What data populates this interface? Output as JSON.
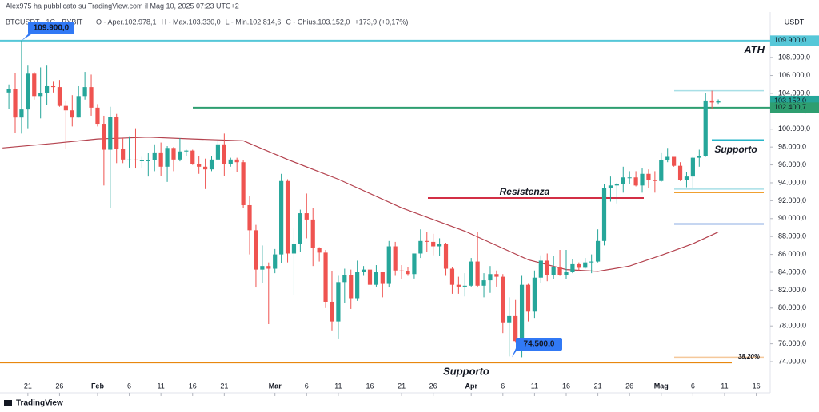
{
  "chart_data": {
    "type": "candlestick",
    "publisher": "Alex975 ha pubblicato su TradingView.com il Mag 10, 2025 07:23 UTC+2",
    "symbol": "BTCUSDT · 1G · BYBIT",
    "ohlc_legend": [
      "O - Aper.102.978,1",
      "H - Max.103.330,0",
      "L - Min.102.814,6",
      "C - Chius.103.152,0",
      "+173,9 (+0,17%)"
    ],
    "currency": "USDT",
    "logo": "TradingView",
    "up_color": "#26a69a",
    "down_color": "#ef5350",
    "x": [
      18,
      19,
      20,
      21,
      22,
      23,
      24,
      25,
      26,
      27,
      28,
      29,
      30,
      31,
      32,
      33,
      34,
      35,
      36,
      37,
      38,
      39,
      40,
      41,
      42,
      43,
      44,
      45,
      46,
      47,
      48,
      49,
      50,
      51,
      52,
      53,
      54,
      55,
      56,
      57,
      58,
      59,
      60,
      61,
      62,
      63,
      64,
      65,
      66,
      67,
      68,
      69,
      70,
      71,
      72,
      73,
      74,
      75,
      76,
      77,
      78,
      79,
      80,
      81,
      82,
      83,
      84,
      85,
      86,
      87,
      88,
      89,
      90,
      91,
      92,
      93,
      94,
      95,
      96,
      97,
      98,
      99,
      100,
      101,
      102,
      103,
      104,
      105,
      106,
      107,
      108,
      109,
      110,
      111,
      112,
      113,
      114,
      115,
      116,
      117,
      118,
      119,
      120,
      121,
      122,
      123,
      124,
      125,
      126,
      127,
      128,
      129,
      130
    ],
    "open": [
      104100,
      104500,
      101300,
      102200,
      106200,
      103700,
      104000,
      104800,
      104700,
      102600,
      102100,
      101300,
      103700,
      104700,
      102400,
      100600,
      97700,
      101400,
      97800,
      96600,
      96600,
      96500,
      96500,
      96500,
      97400,
      95800,
      97900,
      96600,
      97500,
      97600,
      96100,
      95800,
      95500,
      96600,
      98300,
      96100,
      96600,
      96300,
      91500,
      88700,
      84300,
      84700,
      84400,
      86000,
      94200,
      86100,
      87200,
      90600,
      89900,
      86700,
      86200,
      80700,
      78500,
      82900,
      83700,
      81100,
      84000,
      84300,
      82600,
      84000,
      82700,
      86900,
      84200,
      84100,
      83800,
      86100,
      87500,
      87400,
      86900,
      87200,
      84400,
      82600,
      82400,
      82500,
      85200,
      82500,
      83100,
      83800,
      83500,
      78400,
      79100,
      76300,
      82600,
      79600,
      83400,
      85300,
      83700,
      84600,
      83700,
      84000,
      84900,
      84500,
      85100,
      85200,
      87500,
      93400,
      93700,
      93900,
      94600,
      94600,
      93700,
      95000,
      94300,
      94200,
      96500,
      96900,
      95900,
      94300,
      94700,
      96800,
      97000,
      103200,
      102978.1
    ],
    "high": [
      105000,
      106300,
      109900,
      107100,
      106400,
      106900,
      107100,
      105300,
      105500,
      103200,
      103800,
      104800,
      106400,
      106100,
      102800,
      101500,
      102500,
      101700,
      99000,
      99200,
      100100,
      96900,
      97300,
      98300,
      98500,
      98100,
      98000,
      99000,
      97700,
      97700,
      97000,
      96700,
      97000,
      98800,
      99500,
      96800,
      96800,
      96500,
      92500,
      89300,
      87000,
      85100,
      86600,
      95000,
      94400,
      88900,
      91000,
      92800,
      91200,
      86800,
      86500,
      84100,
      83600,
      84400,
      84300,
      85300,
      84700,
      85100,
      84800,
      84000,
      87500,
      87400,
      84800,
      84600,
      86100,
      88800,
      88500,
      88300,
      87800,
      87300,
      84600,
      83500,
      83900,
      85600,
      88500,
      83900,
      84700,
      84200,
      83800,
      81200,
      80900,
      83600,
      82700,
      84200,
      85900,
      86100,
      85800,
      86500,
      86500,
      85500,
      85100,
      85600,
      86000,
      88800,
      93900,
      94700,
      94000,
      95800,
      95300,
      95300,
      95600,
      95500,
      95300,
      97400,
      97900,
      96900,
      96300,
      95200,
      96900,
      97700,
      104000,
      104300,
      103330
    ],
    "low": [
      102300,
      99600,
      99500,
      100100,
      103300,
      101200,
      102700,
      104100,
      102500,
      97800,
      100300,
      101300,
      103300,
      101500,
      100300,
      93700,
      91200,
      96200,
      96200,
      95700,
      95600,
      95700,
      94700,
      95300,
      94800,
      94100,
      95300,
      96400,
      97000,
      96000,
      95000,
      93300,
      95300,
      96500,
      94800,
      95800,
      95200,
      91200,
      86000,
      82300,
      82800,
      78200,
      83900,
      85000,
      85100,
      81400,
      86300,
      87800,
      84700,
      85200,
      80000,
      77500,
      76600,
      80600,
      79900,
      80800,
      83600,
      82000,
      82400,
      81200,
      82300,
      83600,
      83200,
      83600,
      83300,
      85600,
      86300,
      85900,
      85800,
      83600,
      81600,
      81600,
      81300,
      82400,
      82300,
      81200,
      81700,
      82400,
      77200,
      74600,
      76200,
      74500,
      78500,
      78900,
      82800,
      83000,
      83200,
      83600,
      83200,
      83900,
      84200,
      84400,
      83900,
      85100,
      87000,
      91900,
      91700,
      92900,
      93900,
      93600,
      92900,
      93400,
      92900,
      94100,
      96300,
      95800,
      94200,
      93500,
      93400,
      95800,
      96900,
      102300,
      102814.6
    ],
    "close": [
      104500,
      101300,
      102200,
      106200,
      103700,
      104000,
      104800,
      104700,
      102600,
      102100,
      101300,
      103700,
      104700,
      102400,
      100600,
      97700,
      101400,
      97800,
      96600,
      96600,
      96500,
      96500,
      96500,
      97400,
      95800,
      97900,
      96600,
      97500,
      97600,
      96100,
      95800,
      95500,
      96600,
      98300,
      96100,
      96600,
      96300,
      91500,
      88700,
      84300,
      84700,
      84400,
      86000,
      94200,
      86100,
      87200,
      90600,
      89900,
      86700,
      86200,
      80700,
      78500,
      82900,
      83700,
      81100,
      84000,
      84300,
      82600,
      84000,
      82700,
      86900,
      84200,
      84100,
      83800,
      86100,
      87500,
      87400,
      86900,
      87200,
      84400,
      82600,
      82400,
      82500,
      85200,
      82500,
      83100,
      83800,
      83500,
      78400,
      79100,
      76300,
      82600,
      79600,
      83400,
      85300,
      83700,
      84600,
      83700,
      84000,
      84900,
      84500,
      85100,
      85200,
      87500,
      93400,
      93700,
      93900,
      94600,
      94600,
      93700,
      95000,
      94300,
      94200,
      96500,
      96900,
      95900,
      94300,
      94700,
      96800,
      97000,
      103200,
      102978.1,
      103152
    ],
    "moving_average": {
      "color": "#b4424e",
      "x": [
        17,
        25,
        32,
        40,
        47,
        55,
        62,
        70,
        80,
        90,
        100,
        106,
        111,
        116,
        121,
        126,
        130
      ],
      "values": [
        97900,
        98400,
        98900,
        99100,
        98900,
        98700,
        96600,
        94400,
        91200,
        88600,
        85400,
        84300,
        84100,
        84700,
        85900,
        87200,
        88500
      ]
    },
    "xlim": [
      16.6,
      138.2
    ],
    "xticks": [
      {
        "value": 21,
        "label": "21"
      },
      {
        "value": 26,
        "label": "26"
      },
      {
        "value": 32,
        "label": "Feb"
      },
      {
        "value": 37,
        "label": "6"
      },
      {
        "value": 42,
        "label": "11"
      },
      {
        "value": 47,
        "label": "16"
      },
      {
        "value": 52,
        "label": "21"
      },
      {
        "value": 60,
        "label": "Mar"
      },
      {
        "value": 65,
        "label": "6"
      },
      {
        "value": 70,
        "label": "11"
      },
      {
        "value": 75,
        "label": "16"
      },
      {
        "value": 80,
        "label": "21"
      },
      {
        "value": 85,
        "label": "26"
      },
      {
        "value": 91,
        "label": "Apr"
      },
      {
        "value": 96,
        "label": "6"
      },
      {
        "value": 101,
        "label": "11"
      },
      {
        "value": 106,
        "label": "16"
      },
      {
        "value": 111,
        "label": "21"
      },
      {
        "value": 116,
        "label": "26"
      },
      {
        "value": 121,
        "label": "Mag"
      },
      {
        "value": 126,
        "label": "6"
      },
      {
        "value": 131,
        "label": "11"
      },
      {
        "value": 136,
        "label": "16"
      }
    ],
    "ylim": [
      70700,
      113100
    ],
    "yticks": [
      {
        "value": 74000,
        "label": "74.000,0"
      },
      {
        "value": 76000,
        "label": "76.000,0"
      },
      {
        "value": 78000,
        "label": "78.000,0"
      },
      {
        "value": 80000,
        "label": "80.000,0"
      },
      {
        "value": 82000,
        "label": "82.000,0"
      },
      {
        "value": 84000,
        "label": "84.000,0"
      },
      {
        "value": 86000,
        "label": "86.000,0"
      },
      {
        "value": 88000,
        "label": "88.000,0"
      },
      {
        "value": 90000,
        "label": "90.000,0"
      },
      {
        "value": 92000,
        "label": "92.000,0"
      },
      {
        "value": 94000,
        "label": "94.000,0"
      },
      {
        "value": 96000,
        "label": "96.000,0"
      },
      {
        "value": 98000,
        "label": "98.000,0"
      },
      {
        "value": 100000,
        "label": "100.000,0"
      },
      {
        "value": 102000,
        "label": "102.000,0"
      },
      {
        "value": 104000,
        "label": "104.000,0"
      },
      {
        "value": 106000,
        "label": "106.000,0"
      },
      {
        "value": 108000,
        "label": "108.000,0"
      }
    ],
    "levels": [
      {
        "value": 109900,
        "color": "#56c7d8"
      },
      {
        "value": 102400.7,
        "color": "#2e9e70"
      },
      {
        "value": 92300,
        "color": "#d32f45"
      },
      {
        "value": 73900,
        "color": "#e8870e"
      },
      {
        "value": 98800,
        "color": "#26b5c8"
      },
      {
        "value": 92900,
        "color": "#f0a030"
      },
      {
        "value": 93300,
        "color": "#a8dfe6"
      },
      {
        "value": 89400,
        "color": "#1e5cc8"
      },
      {
        "value": 104300,
        "color": "#a8dfe6"
      },
      {
        "value": 74500,
        "color": "#f5c89a"
      }
    ],
    "annotations": [
      {
        "text": "ATH",
        "color": "#56c7d8"
      },
      {
        "text": "Resistenza",
        "color": "#d32f45"
      },
      {
        "text": "Supporto",
        "color": "#26b5c8"
      },
      {
        "text": "Supporto",
        "color": "#2a6fd6"
      },
      {
        "text": "38,20%",
        "color": "#f0a060"
      }
    ],
    "price_labels": [
      {
        "value": 109900,
        "label": "109.900,0",
        "color": "#56c7d8"
      },
      {
        "value": 103152,
        "label": "103.152,0",
        "color": "#26a69a"
      },
      {
        "value": 102400.7,
        "label": "102.400,7",
        "color": "#2e9e70"
      }
    ],
    "callouts": [
      {
        "value": 109900,
        "label": "109.900,0"
      },
      {
        "value": 74500,
        "label": "74.500,0"
      }
    ],
    "callout_color": "#3179f5"
  }
}
